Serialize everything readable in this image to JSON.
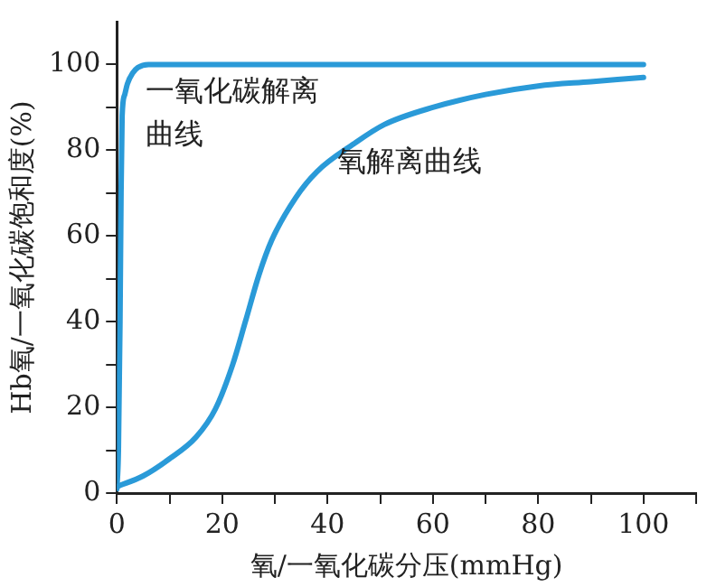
{
  "chart_data": {
    "type": "line",
    "xlabel": "氧/一氧化碳分压(mmHg)",
    "ylabel": "Hb氧/一氧化碳饱和度(%)",
    "xlim": [
      0,
      110
    ],
    "ylim": [
      0,
      110
    ],
    "xticks": [
      0,
      {
        "value": 10,
        "label": null
      },
      20,
      {
        "value": 30,
        "label": null
      },
      40,
      {
        "value": 50,
        "label": null
      },
      60,
      {
        "value": 70,
        "label": null
      },
      80,
      {
        "value": 90,
        "label": null
      },
      100,
      {
        "value": 110,
        "label": null
      }
    ],
    "yticks": [
      0,
      {
        "value": 10,
        "label": null
      },
      20,
      {
        "value": 30,
        "label": null
      },
      40,
      {
        "value": 50,
        "label": null
      },
      60,
      {
        "value": 70,
        "label": null
      },
      80,
      {
        "value": 90,
        "label": null
      },
      100
    ],
    "grid": false,
    "legend": false,
    "marker": "none",
    "line_style": "solid",
    "series": [
      {
        "name": "一氧化碳解离曲线",
        "color": "#2a9ad8",
        "x": [
          0,
          0.3,
          0.6,
          0.8,
          1,
          1.5,
          2,
          3,
          4,
          6,
          10,
          30,
          60,
          100
        ],
        "values": [
          1,
          10,
          40,
          70,
          88,
          93,
          95.5,
          98,
          99.3,
          100,
          100,
          100,
          100,
          100
        ]
      },
      {
        "name": "氧解离曲线",
        "color": "#2a9ad8",
        "x": [
          0,
          5,
          10,
          15,
          18.7,
          22,
          24.4,
          27,
          29.4,
          34,
          38,
          45,
          50.8,
          60,
          70,
          80,
          90,
          100
        ],
        "values": [
          1.5,
          4,
          8,
          13,
          19.6,
          30,
          40,
          51,
          59,
          69,
          75,
          81.5,
          86,
          90,
          93,
          95,
          96,
          97
        ]
      }
    ]
  }
}
